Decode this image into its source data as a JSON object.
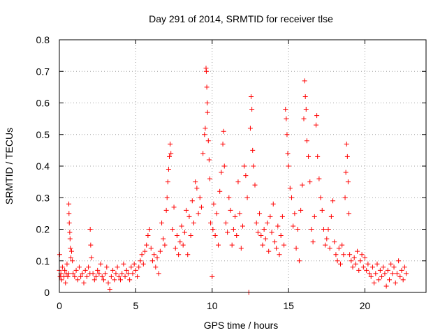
{
  "chart_data": {
    "type": "scatter",
    "title": "Day 291 of 2014, SRMTID for receiver tlse",
    "xlabel": "GPS time / hours",
    "ylabel": "SRMTID / TECUs",
    "xlim": [
      0,
      24
    ],
    "ylim": [
      0,
      0.8
    ],
    "xticks": [
      0,
      5,
      10,
      15,
      20
    ],
    "xtick_labels": [
      "0",
      "5",
      "10",
      "15",
      "20"
    ],
    "yticks": [
      0,
      0.1,
      0.2,
      0.3,
      0.4,
      0.5,
      0.6,
      0.7,
      0.8
    ],
    "ytick_labels": [
      "0",
      "0.1",
      "0.2",
      "0.3",
      "0.4",
      "0.5",
      "0.6",
      "0.7",
      "0.8"
    ],
    "grid": true,
    "marker": "+",
    "series": [
      {
        "name": "SRMTID",
        "color": "#ff0000",
        "points": [
          [
            0.0,
            0.07
          ],
          [
            0.02,
            0.12
          ],
          [
            0.05,
            0.05
          ],
          [
            0.1,
            0.06
          ],
          [
            0.15,
            0.04
          ],
          [
            0.2,
            0.08
          ],
          [
            0.3,
            0.05
          ],
          [
            0.35,
            0.07
          ],
          [
            0.4,
            0.03
          ],
          [
            0.45,
            0.06
          ],
          [
            0.5,
            0.09
          ],
          [
            0.55,
            0.05
          ],
          [
            0.6,
            0.06
          ],
          [
            0.62,
            0.28
          ],
          [
            0.63,
            0.25
          ],
          [
            0.65,
            0.22
          ],
          [
            0.68,
            0.19
          ],
          [
            0.7,
            0.17
          ],
          [
            0.72,
            0.14
          ],
          [
            0.75,
            0.11
          ],
          [
            0.8,
            0.13
          ],
          [
            0.85,
            0.1
          ],
          [
            0.9,
            0.06
          ],
          [
            1.0,
            0.05
          ],
          [
            1.1,
            0.07
          ],
          [
            1.2,
            0.04
          ],
          [
            1.3,
            0.08
          ],
          [
            1.4,
            0.05
          ],
          [
            1.5,
            0.06
          ],
          [
            1.6,
            0.03
          ],
          [
            1.7,
            0.07
          ],
          [
            1.8,
            0.05
          ],
          [
            1.9,
            0.08
          ],
          [
            2.0,
            0.06
          ],
          [
            2.02,
            0.2
          ],
          [
            2.05,
            0.15
          ],
          [
            2.1,
            0.11
          ],
          [
            2.2,
            0.06
          ],
          [
            2.3,
            0.04
          ],
          [
            2.4,
            0.05
          ],
          [
            2.5,
            0.07
          ],
          [
            2.6,
            0.06
          ],
          [
            2.7,
            0.09
          ],
          [
            2.8,
            0.05
          ],
          [
            2.9,
            0.04
          ],
          [
            3.0,
            0.06
          ],
          [
            3.1,
            0.08
          ],
          [
            3.2,
            0.03
          ],
          [
            3.3,
            0.01
          ],
          [
            3.4,
            0.05
          ],
          [
            3.5,
            0.07
          ],
          [
            3.6,
            0.04
          ],
          [
            3.7,
            0.06
          ],
          [
            3.8,
            0.08
          ],
          [
            3.9,
            0.05
          ],
          [
            4.0,
            0.04
          ],
          [
            4.1,
            0.06
          ],
          [
            4.2,
            0.09
          ],
          [
            4.3,
            0.05
          ],
          [
            4.4,
            0.07
          ],
          [
            4.5,
            0.06
          ],
          [
            4.6,
            0.04
          ],
          [
            4.7,
            0.08
          ],
          [
            4.8,
            0.06
          ],
          [
            4.9,
            0.09
          ],
          [
            5.0,
            0.07
          ],
          [
            5.1,
            0.05
          ],
          [
            5.2,
            0.08
          ],
          [
            5.3,
            0.1
          ],
          [
            5.4,
            0.12
          ],
          [
            5.5,
            0.09
          ],
          [
            5.6,
            0.13
          ],
          [
            5.7,
            0.15
          ],
          [
            5.8,
            0.18
          ],
          [
            5.9,
            0.2
          ],
          [
            6.0,
            0.14
          ],
          [
            6.1,
            0.1
          ],
          [
            6.2,
            0.12
          ],
          [
            6.3,
            0.08
          ],
          [
            6.4,
            0.11
          ],
          [
            6.5,
            0.06
          ],
          [
            6.6,
            0.13
          ],
          [
            6.7,
            0.22
          ],
          [
            6.8,
            0.17
          ],
          [
            6.9,
            0.15
          ],
          [
            7.0,
            0.26
          ],
          [
            7.05,
            0.3
          ],
          [
            7.1,
            0.35
          ],
          [
            7.15,
            0.39
          ],
          [
            7.2,
            0.43
          ],
          [
            7.25,
            0.47
          ],
          [
            7.3,
            0.44
          ],
          [
            7.4,
            0.2
          ],
          [
            7.5,
            0.27
          ],
          [
            7.6,
            0.14
          ],
          [
            7.7,
            0.18
          ],
          [
            7.8,
            0.12
          ],
          [
            7.9,
            0.16
          ],
          [
            8.0,
            0.21
          ],
          [
            8.1,
            0.15
          ],
          [
            8.2,
            0.19
          ],
          [
            8.3,
            0.26
          ],
          [
            8.4,
            0.12
          ],
          [
            8.5,
            0.24
          ],
          [
            8.6,
            0.18
          ],
          [
            8.7,
            0.29
          ],
          [
            8.8,
            0.22
          ],
          [
            8.9,
            0.35
          ],
          [
            9.0,
            0.33
          ],
          [
            9.1,
            0.25
          ],
          [
            9.2,
            0.3
          ],
          [
            9.3,
            0.27
          ],
          [
            9.4,
            0.44
          ],
          [
            9.5,
            0.5
          ],
          [
            9.55,
            0.52
          ],
          [
            9.6,
            0.71
          ],
          [
            9.62,
            0.7
          ],
          [
            9.65,
            0.65
          ],
          [
            9.68,
            0.6
          ],
          [
            9.7,
            0.57
          ],
          [
            9.75,
            0.48
          ],
          [
            9.8,
            0.42
          ],
          [
            9.85,
            0.36
          ],
          [
            9.9,
            0.22
          ],
          [
            10.0,
            0.05
          ],
          [
            10.05,
            0.2
          ],
          [
            10.1,
            0.28
          ],
          [
            10.2,
            0.18
          ],
          [
            10.3,
            0.25
          ],
          [
            10.4,
            0.15
          ],
          [
            10.5,
            0.32
          ],
          [
            10.6,
            0.38
          ],
          [
            10.7,
            0.47
          ],
          [
            10.75,
            0.51
          ],
          [
            10.8,
            0.4
          ],
          [
            10.9,
            0.22
          ],
          [
            11.0,
            0.19
          ],
          [
            11.1,
            0.3
          ],
          [
            11.2,
            0.26
          ],
          [
            11.3,
            0.15
          ],
          [
            11.4,
            0.2
          ],
          [
            11.5,
            0.24
          ],
          [
            11.6,
            0.18
          ],
          [
            11.7,
            0.35
          ],
          [
            11.8,
            0.25
          ],
          [
            11.9,
            0.14
          ],
          [
            12.0,
            0.21
          ],
          [
            12.1,
            0.4
          ],
          [
            12.2,
            0.37
          ],
          [
            12.3,
            0.3
          ],
          [
            12.4,
            0.0
          ],
          [
            12.5,
            0.52
          ],
          [
            12.55,
            0.62
          ],
          [
            12.6,
            0.58
          ],
          [
            12.65,
            0.45
          ],
          [
            12.7,
            0.4
          ],
          [
            12.8,
            0.34
          ],
          [
            12.9,
            0.22
          ],
          [
            13.0,
            0.19
          ],
          [
            13.1,
            0.25
          ],
          [
            13.2,
            0.18
          ],
          [
            13.3,
            0.15
          ],
          [
            13.4,
            0.2
          ],
          [
            13.5,
            0.17
          ],
          [
            13.6,
            0.22
          ],
          [
            13.7,
            0.13
          ],
          [
            13.8,
            0.24
          ],
          [
            13.9,
            0.19
          ],
          [
            14.0,
            0.28
          ],
          [
            14.1,
            0.16
          ],
          [
            14.2,
            0.14
          ],
          [
            14.3,
            0.21
          ],
          [
            14.4,
            0.12
          ],
          [
            14.5,
            0.18
          ],
          [
            14.6,
            0.24
          ],
          [
            14.7,
            0.15
          ],
          [
            14.8,
            0.58
          ],
          [
            14.85,
            0.55
          ],
          [
            14.9,
            0.5
          ],
          [
            14.95,
            0.44
          ],
          [
            15.0,
            0.4
          ],
          [
            15.1,
            0.33
          ],
          [
            15.2,
            0.3
          ],
          [
            15.3,
            0.21
          ],
          [
            15.4,
            0.25
          ],
          [
            15.5,
            0.14
          ],
          [
            15.6,
            0.2
          ],
          [
            15.7,
            0.1
          ],
          [
            15.8,
            0.26
          ],
          [
            15.9,
            0.34
          ],
          [
            16.0,
            0.55
          ],
          [
            16.05,
            0.67
          ],
          [
            16.1,
            0.62
          ],
          [
            16.15,
            0.58
          ],
          [
            16.2,
            0.48
          ],
          [
            16.3,
            0.43
          ],
          [
            16.4,
            0.35
          ],
          [
            16.5,
            0.2
          ],
          [
            16.6,
            0.16
          ],
          [
            16.7,
            0.24
          ],
          [
            16.8,
            0.53
          ],
          [
            16.85,
            0.56
          ],
          [
            16.9,
            0.43
          ],
          [
            17.0,
            0.36
          ],
          [
            17.1,
            0.3
          ],
          [
            17.2,
            0.26
          ],
          [
            17.3,
            0.2
          ],
          [
            17.4,
            0.15
          ],
          [
            17.5,
            0.17
          ],
          [
            17.6,
            0.2
          ],
          [
            17.7,
            0.14
          ],
          [
            17.8,
            0.24
          ],
          [
            17.9,
            0.29
          ],
          [
            18.0,
            0.16
          ],
          [
            18.1,
            0.12
          ],
          [
            18.2,
            0.1
          ],
          [
            18.3,
            0.14
          ],
          [
            18.4,
            0.09
          ],
          [
            18.5,
            0.15
          ],
          [
            18.6,
            0.12
          ],
          [
            18.7,
            0.3
          ],
          [
            18.75,
            0.38
          ],
          [
            18.8,
            0.47
          ],
          [
            18.85,
            0.43
          ],
          [
            18.9,
            0.35
          ],
          [
            18.95,
            0.25
          ],
          [
            19.0,
            0.12
          ],
          [
            19.1,
            0.1
          ],
          [
            19.2,
            0.08
          ],
          [
            19.3,
            0.11
          ],
          [
            19.4,
            0.09
          ],
          [
            19.5,
            0.13
          ],
          [
            19.6,
            0.07
          ],
          [
            19.7,
            0.1
          ],
          [
            19.8,
            0.12
          ],
          [
            19.9,
            0.08
          ],
          [
            20.0,
            0.11
          ],
          [
            20.1,
            0.07
          ],
          [
            20.2,
            0.09
          ],
          [
            20.3,
            0.06
          ],
          [
            20.4,
            0.05
          ],
          [
            20.5,
            0.08
          ],
          [
            20.6,
            0.03
          ],
          [
            20.7,
            0.06
          ],
          [
            20.8,
            0.09
          ],
          [
            20.9,
            0.04
          ],
          [
            21.0,
            0.07
          ],
          [
            21.1,
            0.05
          ],
          [
            21.2,
            0.08
          ],
          [
            21.3,
            0.06
          ],
          [
            21.4,
            0.02
          ],
          [
            21.5,
            0.07
          ],
          [
            21.6,
            0.04
          ],
          [
            21.7,
            0.09
          ],
          [
            21.8,
            0.06
          ],
          [
            21.9,
            0.08
          ],
          [
            22.0,
            0.03
          ],
          [
            22.1,
            0.06
          ],
          [
            22.2,
            0.1
          ],
          [
            22.3,
            0.05
          ],
          [
            22.4,
            0.07
          ],
          [
            22.5,
            0.04
          ],
          [
            22.6,
            0.08
          ],
          [
            22.7,
            0.06
          ]
        ]
      }
    ]
  }
}
